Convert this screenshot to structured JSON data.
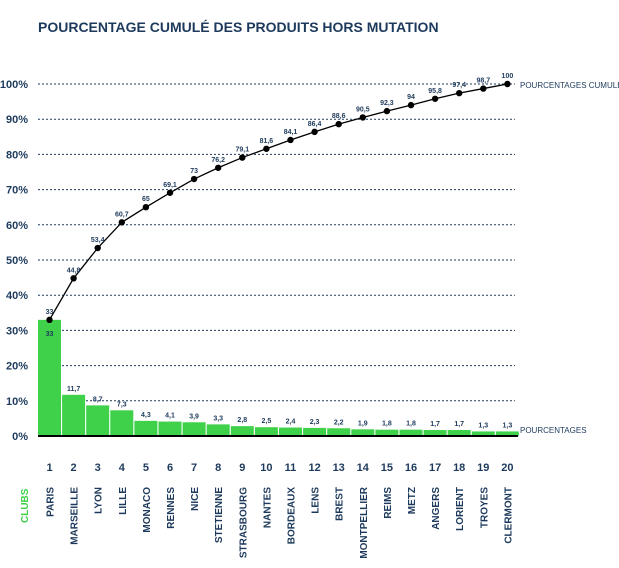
{
  "chart_data": {
    "type": "bar+line",
    "title": "POURCENTAGE CUMULÉ DES PRODUITS HORS MUTATION",
    "xlabel": "CLUBS",
    "ylim": [
      0,
      100
    ],
    "yticks": [
      "0%",
      "10%",
      "20%",
      "30%",
      "40%",
      "50%",
      "60%",
      "70%",
      "80%",
      "90%",
      "100%"
    ],
    "ytick_values": [
      0,
      10,
      20,
      30,
      40,
      50,
      60,
      70,
      80,
      90,
      100
    ],
    "grid": true,
    "ranks": [
      "1",
      "2",
      "3",
      "4",
      "5",
      "6",
      "7",
      "8",
      "9",
      "10",
      "11",
      "12",
      "13",
      "14",
      "15",
      "16",
      "17",
      "18",
      "19",
      "20"
    ],
    "categories": [
      "PARIS",
      "MARSEILLE",
      "LYON",
      "LILLE",
      "MONACO",
      "RENNES",
      "NICE",
      "STETIENNE",
      "STRASBOURG",
      "NANTES",
      "BORDEAUX",
      "LENS",
      "BREST",
      "MONTPELLIER",
      "REIMS",
      "METZ",
      "ANGERS",
      "LORIENT",
      "TROYES",
      "CLERMONT"
    ],
    "series": [
      {
        "name": "POURCENTAGES",
        "type": "bar",
        "color": "#3fd14a",
        "values": [
          33,
          11.7,
          8.7,
          7.3,
          4.3,
          4.1,
          3.9,
          3.3,
          2.8,
          2.5,
          2.4,
          2.3,
          2.2,
          1.9,
          1.8,
          1.8,
          1.7,
          1.7,
          1.3,
          1.3
        ],
        "labels": [
          "33",
          "11,7",
          "8,7",
          "7,3",
          "4,3",
          "4,1",
          "3,9",
          "3,3",
          "2,8",
          "2,5",
          "2,4",
          "2,3",
          "2,2",
          "1,9",
          "1,8",
          "1,8",
          "1,7",
          "1,7",
          "1,3",
          "1,3"
        ]
      },
      {
        "name": "POURCENTAGES CUMULÉS",
        "type": "line",
        "color": "#000000",
        "values": [
          33,
          44.8,
          53.4,
          60.7,
          65,
          69.1,
          73,
          76.2,
          79.1,
          81.6,
          84.1,
          86.4,
          88.6,
          90.5,
          92.3,
          94,
          95.8,
          97.4,
          98.7,
          100
        ],
        "labels": [
          "33",
          "44,8",
          "53,4",
          "60,7",
          "65",
          "69,1",
          "73",
          "76,2",
          "79,1",
          "81,6",
          "84,1",
          "86,4",
          "88,6",
          "90,5",
          "92,3",
          "94",
          "95,8",
          "97,4",
          "98,7",
          "100"
        ]
      }
    ],
    "xlabel_color": "#3fd14a"
  }
}
